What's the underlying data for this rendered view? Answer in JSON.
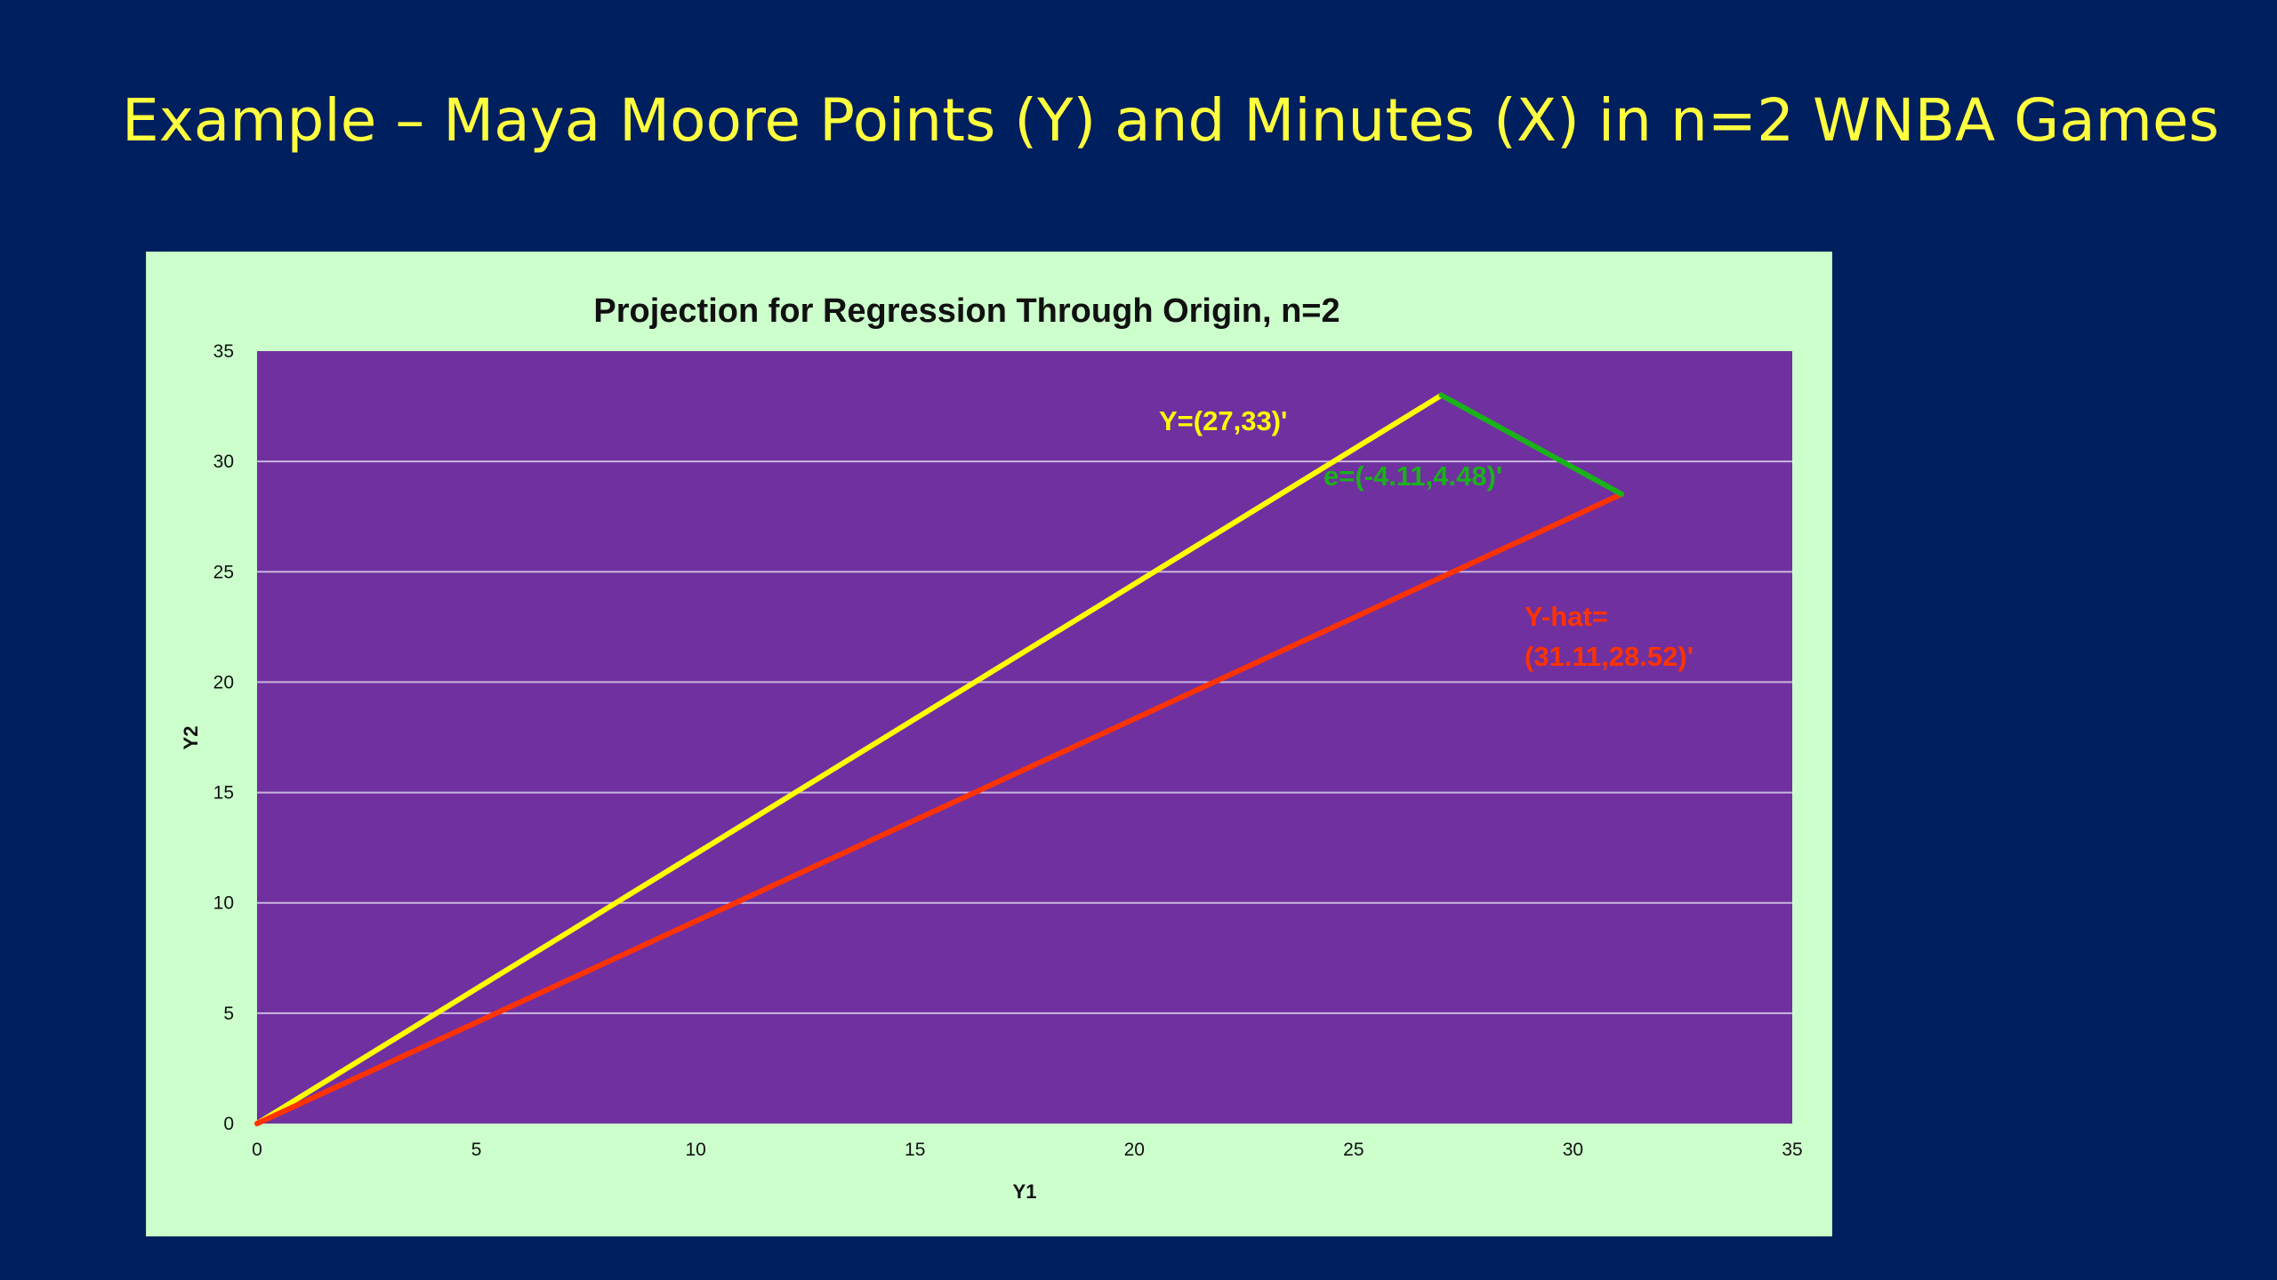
{
  "slide": {
    "title": "Example – Maya Moore Points (Y) and Minutes (X) in n=2 WNBA Games",
    "background_color": "#001f5e",
    "title_color": "#ffff3f"
  },
  "chart_data": {
    "type": "line",
    "title": "Projection for Regression Through Origin, n=2",
    "xlabel": "Y1",
    "ylabel": "Y2",
    "xlim": [
      0,
      35
    ],
    "ylim": [
      0,
      35
    ],
    "xticks": [
      0,
      5,
      10,
      15,
      20,
      25,
      30,
      35
    ],
    "yticks": [
      0,
      5,
      10,
      15,
      20,
      25,
      30,
      35
    ],
    "grid": "horizontal",
    "legend": "none",
    "frame_color": "#ccffcc",
    "plot_background": "#7030a0",
    "series": [
      {
        "id": "y-vector",
        "color": "#ffff00",
        "points": [
          [
            0,
            0
          ],
          [
            27,
            33
          ]
        ],
        "label": "Y=(27,33)'"
      },
      {
        "id": "yhat-vector",
        "color": "#ff3300",
        "points": [
          [
            0,
            0
          ],
          [
            31.11,
            28.52
          ]
        ],
        "label_lines": [
          "Y-hat=",
          "(31.11,28.52)'"
        ]
      },
      {
        "id": "residual-vector",
        "color": "#19b219",
        "points": [
          [
            27,
            33
          ],
          [
            31.11,
            28.52
          ]
        ],
        "label": "e=(-4.11,4.48)'"
      }
    ]
  }
}
